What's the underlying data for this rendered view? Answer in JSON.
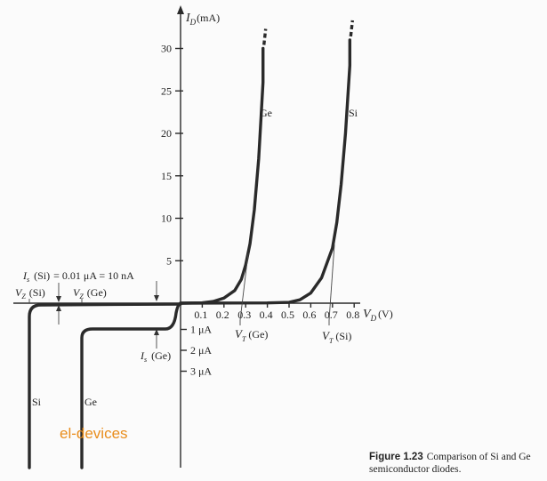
{
  "chart_data": {
    "type": "line",
    "title": "",
    "xlabel": "V_D (V)",
    "ylabel": "I_D (mA)",
    "x_axis": {
      "label_main": "V",
      "label_sub": "D",
      "label_unit": "(V)",
      "ticks": [
        0.1,
        0.2,
        0.3,
        0.4,
        0.5,
        0.6,
        0.7,
        0.8
      ],
      "tick_labels": [
        "0.1",
        "0.2",
        "0.3",
        "0.4",
        "0.5",
        "0.6",
        "0.7",
        "0.8"
      ]
    },
    "y_axis": {
      "label_main": "I",
      "label_sub": "D",
      "label_unit": "(mA)",
      "ticks": [
        5,
        10,
        15,
        20,
        25,
        30
      ],
      "tick_labels": [
        "5",
        "10",
        "15",
        "20",
        "25",
        "30"
      ]
    },
    "neg_axis": {
      "ticks": [
        1,
        2,
        3
      ],
      "tick_labels": [
        "1 μA",
        "2 μA",
        "3 μA"
      ]
    },
    "series": [
      {
        "name": "Ge",
        "points": [
          [
            0.0,
            0.0
          ],
          [
            0.1,
            0.05
          ],
          [
            0.15,
            0.2
          ],
          [
            0.2,
            0.6
          ],
          [
            0.25,
            1.5
          ],
          [
            0.28,
            2.8
          ],
          [
            0.3,
            4.5
          ],
          [
            0.32,
            7.0
          ],
          [
            0.34,
            11.0
          ],
          [
            0.36,
            17.0
          ],
          [
            0.37,
            21.5
          ],
          [
            0.38,
            26.0
          ],
          [
            0.38,
            30.0
          ]
        ]
      },
      {
        "name": "Si",
        "points": [
          [
            0.0,
            0.0
          ],
          [
            0.4,
            0.03
          ],
          [
            0.5,
            0.1
          ],
          [
            0.55,
            0.4
          ],
          [
            0.6,
            1.2
          ],
          [
            0.65,
            3.0
          ],
          [
            0.7,
            6.5
          ],
          [
            0.72,
            9.5
          ],
          [
            0.74,
            14.0
          ],
          [
            0.76,
            20.0
          ],
          [
            0.77,
            24.0
          ],
          [
            0.78,
            28.0
          ],
          [
            0.78,
            31.0
          ]
        ]
      }
    ],
    "annotations": {
      "is_si": {
        "text": "= 0.01 μA = 10 nA",
        "i": "I",
        "sub": "s",
        "tag": "(Si)"
      },
      "is_ge": {
        "i": "I",
        "sub": "s",
        "tag": "(Ge)"
      },
      "vz_si": {
        "v": "V",
        "sub": "Z",
        "tag": "(Si)"
      },
      "vz_ge": {
        "v": "V",
        "sub": "Z",
        "tag": "(Ge)"
      },
      "vt_ge": {
        "v": "V",
        "sub": "T",
        "tag": "(Ge)"
      },
      "vt_si": {
        "v": "V",
        "sub": "T",
        "tag": "(Si)"
      },
      "label_ge": "Ge",
      "label_si": "Si"
    },
    "grid": false,
    "legend": "none"
  },
  "watermark": "el-devices",
  "caption": {
    "figure": "Figure 1.23",
    "text": "Comparison of Si and Ge semiconductor diodes."
  }
}
